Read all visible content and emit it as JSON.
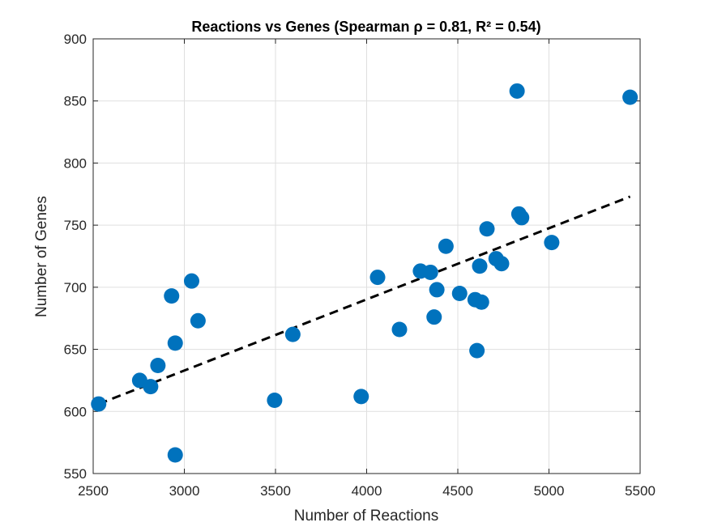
{
  "chart_data": {
    "type": "scatter",
    "title": "Reactions vs Genes (Spearman ρ = 0.81, R² = 0.54)",
    "xlabel": "Number of Reactions",
    "ylabel": "Number of Genes",
    "xlim": [
      2500,
      5500
    ],
    "ylim": [
      550,
      900
    ],
    "xticks": [
      2500,
      3000,
      3500,
      4000,
      4500,
      5000,
      5500
    ],
    "yticks": [
      550,
      600,
      650,
      700,
      750,
      800,
      850,
      900
    ],
    "grid": true,
    "legend": "none",
    "colors": {
      "points": "#0072bd",
      "fit_line": "#000000",
      "grid": "#dfdfdf",
      "axes": "#262626"
    },
    "points": [
      {
        "x": 2530,
        "y": 606
      },
      {
        "x": 2755,
        "y": 625
      },
      {
        "x": 2815,
        "y": 620
      },
      {
        "x": 2855,
        "y": 637
      },
      {
        "x": 2930,
        "y": 693
      },
      {
        "x": 2950,
        "y": 655
      },
      {
        "x": 2950,
        "y": 565
      },
      {
        "x": 3040,
        "y": 705
      },
      {
        "x": 3075,
        "y": 673
      },
      {
        "x": 3495,
        "y": 609
      },
      {
        "x": 3595,
        "y": 662
      },
      {
        "x": 3970,
        "y": 612
      },
      {
        "x": 4060,
        "y": 708
      },
      {
        "x": 4180,
        "y": 666
      },
      {
        "x": 4295,
        "y": 713
      },
      {
        "x": 4350,
        "y": 712
      },
      {
        "x": 4370,
        "y": 676
      },
      {
        "x": 4385,
        "y": 698
      },
      {
        "x": 4435,
        "y": 733
      },
      {
        "x": 4510,
        "y": 695
      },
      {
        "x": 4595,
        "y": 690
      },
      {
        "x": 4605,
        "y": 649
      },
      {
        "x": 4620,
        "y": 717
      },
      {
        "x": 4630,
        "y": 688
      },
      {
        "x": 4660,
        "y": 747
      },
      {
        "x": 4710,
        "y": 723
      },
      {
        "x": 4740,
        "y": 719
      },
      {
        "x": 4825,
        "y": 858
      },
      {
        "x": 4835,
        "y": 759
      },
      {
        "x": 4850,
        "y": 756
      },
      {
        "x": 5015,
        "y": 736
      },
      {
        "x": 5445,
        "y": 853
      }
    ],
    "fit_line": {
      "style": "dashed",
      "x": [
        2530,
        5445
      ],
      "y": [
        606,
        773
      ]
    }
  }
}
